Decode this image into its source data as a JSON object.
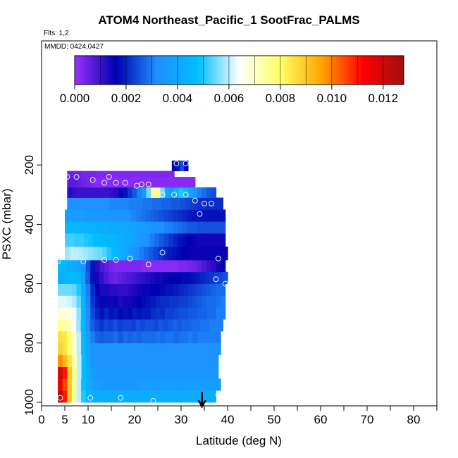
{
  "chart_data": {
    "type": "heatmap",
    "title": "ATOM4 Northeast_Pacific_1 SootFrac_PALMS",
    "flights_label": "Flts: 1,2",
    "dates_label": "MMDD: 0424,0427",
    "xlabel": "Latitude (deg N)",
    "ylabel": "PSXC (mbar)",
    "xlim": [
      0,
      85
    ],
    "ylim": [
      1000,
      0
    ],
    "x_ticks": [
      0,
      5,
      10,
      20,
      30,
      40,
      50,
      60,
      70,
      80
    ],
    "y_ticks": [
      200,
      400,
      600,
      800,
      1000
    ],
    "colorbar": {
      "min": 0.0,
      "max": 0.0128,
      "ticks": [
        "0.000",
        "0.002",
        "0.004",
        "0.006",
        "0.008",
        "0.010",
        "0.012"
      ],
      "colors": [
        "#9b30ff",
        "#0000b0",
        "#1e90ff",
        "#00bfff",
        "#ffffff",
        "#ffff66",
        "#ffa500",
        "#ff0000",
        "#a01010"
      ]
    },
    "layers": [
      {
        "pressure": [
          960,
          1000
        ],
        "x_range": [
          3.5,
          37.5
        ],
        "values": [
          0.0125,
          0.011,
          0.009,
          0.0075,
          0.006,
          0.005,
          0.0045,
          0.0042,
          0.0042,
          0.0042,
          0.0042,
          0.0042,
          0.0042,
          0.0042,
          0.0042,
          0.0042,
          0.0042,
          0.0042,
          0.0042,
          0.0042,
          0.0042,
          0.0042,
          0.0042,
          0.0042,
          0.0042,
          0.0042,
          0.0042,
          0.0042,
          0.0042,
          0.0042,
          0.0042,
          0.0042,
          0.0042,
          0.0042
        ]
      },
      {
        "pressure": [
          920,
          960
        ],
        "x_range": [
          3.5,
          38.5
        ],
        "values": [
          0.0115,
          0.0105,
          0.009,
          0.0075,
          0.006,
          0.0048,
          0.0042,
          0.0038,
          0.0036,
          0.0035,
          0.0035,
          0.0035,
          0.0035,
          0.0035,
          0.0035,
          0.0035,
          0.0035,
          0.0035,
          0.0036,
          0.0036,
          0.0036,
          0.0036,
          0.0036,
          0.0036,
          0.0036,
          0.0036,
          0.0036,
          0.0036,
          0.0036,
          0.0036,
          0.0036,
          0.0036,
          0.0036,
          0.0036,
          0.0036
        ]
      },
      {
        "pressure": [
          880,
          920
        ],
        "x_range": [
          3.5,
          38.0
        ],
        "values": [
          0.012,
          0.011,
          0.009,
          0.0075,
          0.006,
          0.0048,
          0.004,
          0.0036,
          0.0034,
          0.0034,
          0.0034,
          0.0034,
          0.0034,
          0.0034,
          0.0034,
          0.0034,
          0.0034,
          0.0034,
          0.0034,
          0.0034,
          0.0034,
          0.0034,
          0.0034,
          0.0034,
          0.0034,
          0.0034,
          0.0034,
          0.0034,
          0.0034,
          0.0034,
          0.0034,
          0.0034,
          0.0034,
          0.0034
        ]
      },
      {
        "pressure": [
          840,
          880
        ],
        "x_range": [
          3.5,
          38.0
        ],
        "values": [
          0.0098,
          0.0092,
          0.0085,
          0.0072,
          0.006,
          0.0048,
          0.0039,
          0.0035,
          0.0033,
          0.0033,
          0.0033,
          0.0033,
          0.0033,
          0.0033,
          0.0033,
          0.0033,
          0.0033,
          0.0033,
          0.0033,
          0.0033,
          0.0033,
          0.0033,
          0.0033,
          0.0033,
          0.0033,
          0.0033,
          0.0033,
          0.0033,
          0.0033,
          0.0033,
          0.0033,
          0.0033,
          0.0033,
          0.0033
        ]
      },
      {
        "pressure": [
          800,
          840
        ],
        "x_range": [
          3.5,
          38.5
        ],
        "values": [
          0.0088,
          0.0085,
          0.008,
          0.007,
          0.006,
          0.0047,
          0.0038,
          0.0034,
          0.0033,
          0.0033,
          0.0033,
          0.0033,
          0.0033,
          0.0033,
          0.0033,
          0.0033,
          0.0033,
          0.0033,
          0.0033,
          0.0033,
          0.0033,
          0.0033,
          0.0033,
          0.0033,
          0.0033,
          0.0033,
          0.0033,
          0.0033,
          0.0033,
          0.0033,
          0.0033,
          0.0033,
          0.0033,
          0.0033,
          0.0033
        ]
      },
      {
        "pressure": [
          760,
          800
        ],
        "x_range": [
          3.5,
          38.5
        ],
        "values": [
          0.0086,
          0.0084,
          0.0079,
          0.007,
          0.006,
          0.0047,
          0.0036,
          0.003,
          0.0027,
          0.0026,
          0.0027,
          0.0027,
          0.0028,
          0.0026,
          0.0028,
          0.0027,
          0.0028,
          0.0027,
          0.0028,
          0.0028,
          0.0028,
          0.0029,
          0.0028,
          0.0029,
          0.0029,
          0.0028,
          0.0029,
          0.0029,
          0.003,
          0.0029,
          0.003,
          0.003,
          0.003,
          0.003,
          0.003
        ]
      },
      {
        "pressure": [
          720,
          760
        ],
        "x_range": [
          3.5,
          39.0
        ],
        "values": [
          0.0075,
          0.0074,
          0.0072,
          0.0066,
          0.0058,
          0.0046,
          0.0034,
          0.0027,
          0.0024,
          0.0022,
          0.0024,
          0.0023,
          0.0025,
          0.0023,
          0.0024,
          0.0024,
          0.0023,
          0.0025,
          0.0024,
          0.0025,
          0.0025,
          0.0024,
          0.0026,
          0.0025,
          0.0026,
          0.0027,
          0.0026,
          0.0027,
          0.0027,
          0.0028,
          0.0028,
          0.0029,
          0.0029,
          0.003,
          0.003,
          0.003
        ]
      },
      {
        "pressure": [
          680,
          720
        ],
        "x_range": [
          3.5,
          39.5
        ],
        "values": [
          0.0068,
          0.0068,
          0.0067,
          0.0063,
          0.0057,
          0.0045,
          0.0032,
          0.0024,
          0.002,
          0.0018,
          0.002,
          0.0018,
          0.0019,
          0.0017,
          0.0018,
          0.0017,
          0.0019,
          0.0018,
          0.0019,
          0.0019,
          0.0021,
          0.0022,
          0.0021,
          0.0023,
          0.0023,
          0.0024,
          0.0025,
          0.0025,
          0.0026,
          0.0026,
          0.0027,
          0.0027,
          0.0028,
          0.0028,
          0.003,
          0.003
        ]
      },
      {
        "pressure": [
          640,
          680
        ],
        "x_range": [
          3.5,
          39.5
        ],
        "values": [
          0.0062,
          0.0062,
          0.0061,
          0.0059,
          0.0054,
          0.0044,
          0.0031,
          0.0022,
          0.0018,
          0.0015,
          0.0017,
          0.0014,
          0.0015,
          0.0013,
          0.0014,
          0.0014,
          0.0015,
          0.0016,
          0.0017,
          0.0018,
          0.0019,
          0.002,
          0.0021,
          0.0021,
          0.0022,
          0.0022,
          0.0023,
          0.0023,
          0.0024,
          0.0025,
          0.0026,
          0.0027,
          0.0028,
          0.0028,
          0.0029,
          0.003
        ]
      },
      {
        "pressure": [
          600,
          640
        ],
        "x_range": [
          3.5,
          39.5
        ],
        "values": [
          0.0055,
          0.0055,
          0.0055,
          0.0054,
          0.005,
          0.0042,
          0.003,
          0.0021,
          0.0016,
          0.0013,
          0.0013,
          0.0012,
          0.0012,
          0.0011,
          0.0011,
          0.0012,
          0.0013,
          0.0014,
          0.0015,
          0.0015,
          0.0016,
          0.0016,
          0.0017,
          0.0018,
          0.0018,
          0.0019,
          0.002,
          0.0021,
          0.0022,
          0.0023,
          0.0024,
          0.0025,
          0.0026,
          0.0027,
          0.0028,
          0.0028
        ]
      },
      {
        "pressure": [
          560,
          600
        ],
        "x_range": [
          3.5,
          40.0
        ],
        "values": [
          0.0043,
          0.0044,
          0.0046,
          0.0047,
          0.0045,
          0.0038,
          0.0027,
          0.0018,
          0.0014,
          0.0011,
          0.0008,
          0.0006,
          0.0005,
          0.0006,
          0.0007,
          0.0008,
          0.0009,
          0.001,
          0.0011,
          0.0012,
          0.0013,
          0.0014,
          0.0014,
          0.0015,
          0.0016,
          0.0016,
          0.0016,
          0.0017,
          0.0017,
          0.0018,
          0.0019,
          0.002,
          0.0021,
          0.0022,
          0.0023,
          0.0024,
          0.0025
        ]
      },
      {
        "pressure": [
          520,
          560
        ],
        "x_range": [
          3.5,
          39.5
        ],
        "values": [
          0.0047,
          0.0045,
          0.0043,
          0.004,
          0.0038,
          0.0033,
          0.0025,
          0.0018,
          0.0012,
          0.0008,
          0.0006,
          0.0004,
          0.0003,
          0.0003,
          0.0003,
          0.0003,
          0.0003,
          0.0003,
          0.0002,
          0.0002,
          0.0002,
          0.0002,
          0.0002,
          0.0002,
          0.0002,
          0.0002,
          0.0003,
          0.0003,
          0.0004,
          0.0005,
          0.0006,
          0.0008,
          0.001,
          0.0012,
          0.0014,
          0.0016
        ]
      },
      {
        "pressure": [
          475,
          520
        ],
        "x_range": [
          5.0,
          40.0
        ],
        "values": [
          0.0058,
          0.006,
          0.006,
          0.0059,
          0.0058,
          0.0057,
          0.0056,
          0.0055,
          0.0053,
          0.005,
          0.0047,
          0.0044,
          0.0041,
          0.0038,
          0.0035,
          0.0032,
          0.003,
          0.0028,
          0.0026,
          0.0024,
          0.0022,
          0.002,
          0.0019,
          0.0018,
          0.0017,
          0.0016,
          0.0016,
          0.0015,
          0.0015,
          0.0015,
          0.0015,
          0.0015,
          0.0015,
          0.0015,
          0.0015
        ]
      },
      {
        "pressure": [
          430,
          475
        ],
        "x_range": [
          5.0,
          39.5
        ],
        "values": [
          0.0052,
          0.0052,
          0.0051,
          0.0051,
          0.005,
          0.0049,
          0.0048,
          0.0047,
          0.0046,
          0.0045,
          0.0044,
          0.0043,
          0.0042,
          0.004,
          0.0038,
          0.0036,
          0.0034,
          0.0032,
          0.003,
          0.0028,
          0.0026,
          0.0024,
          0.0022,
          0.002,
          0.0018,
          0.0017,
          0.0016,
          0.0015,
          0.0014,
          0.0014,
          0.0014,
          0.0014,
          0.0014,
          0.0014
        ]
      },
      {
        "pressure": [
          390,
          430
        ],
        "x_range": [
          5.0,
          39.5
        ],
        "values": [
          0.0045,
          0.0045,
          0.0045,
          0.0044,
          0.0044,
          0.0043,
          0.0043,
          0.0042,
          0.0042,
          0.0041,
          0.0041,
          0.004,
          0.004,
          0.0039,
          0.0038,
          0.0037,
          0.0036,
          0.0035,
          0.0034,
          0.0033,
          0.0032,
          0.0031,
          0.003,
          0.0029,
          0.0028,
          0.0027,
          0.0026,
          0.0026,
          0.0025,
          0.0025,
          0.0025,
          0.0025,
          0.0025,
          0.0025
        ]
      },
      {
        "pressure": [
          350,
          390
        ],
        "x_range": [
          5.0,
          39.5
        ],
        "values": [
          0.0036,
          0.0036,
          0.0036,
          0.0036,
          0.0035,
          0.0035,
          0.0035,
          0.0034,
          0.0034,
          0.0034,
          0.0033,
          0.0033,
          0.0033,
          0.0032,
          0.0031,
          0.003,
          0.0029,
          0.0028,
          0.0027,
          0.0026,
          0.0025,
          0.0024,
          0.0023,
          0.0022,
          0.0021,
          0.002,
          0.0019,
          0.0018,
          0.0018,
          0.0018,
          0.0018,
          0.0018,
          0.0018,
          0.0018
        ]
      },
      {
        "pressure": [
          310,
          350
        ],
        "x_range": [
          5.5,
          39.0
        ],
        "values": [
          0.0032,
          0.0032,
          0.0032,
          0.0032,
          0.0032,
          0.0032,
          0.0032,
          0.0032,
          0.0032,
          0.0031,
          0.0031,
          0.0031,
          0.0031,
          0.003,
          0.003,
          0.003,
          0.0029,
          0.0029,
          0.0028,
          0.0028,
          0.0027,
          0.0027,
          0.0026,
          0.0026,
          0.0025,
          0.0024,
          0.0023,
          0.0022,
          0.0021,
          0.0021,
          0.0021,
          0.0021,
          0.0021
        ]
      },
      {
        "pressure": [
          275,
          310
        ],
        "x_range": [
          5.5,
          37.5
        ],
        "values": [
          0.0012,
          0.0011,
          0.001,
          0.001,
          0.001,
          0.001,
          0.001,
          0.001,
          0.001,
          0.0011,
          0.0012,
          0.0015,
          0.0018,
          0.0022,
          0.0026,
          0.003,
          0.0035,
          0.0055,
          0.0075,
          0.0075,
          0.0055,
          0.004,
          0.0035,
          0.0045,
          0.005,
          0.0045,
          0.004,
          0.0035,
          0.003,
          0.0028,
          0.0026,
          0.0025
        ]
      },
      {
        "pressure": [
          240,
          275
        ],
        "x_range": [
          5.5,
          33.0
        ],
        "values": [
          0.0007,
          0.0007,
          0.0006,
          0.0005,
          0.0004,
          0.0003,
          0.0002,
          0.0002,
          0.0002,
          0.0002,
          0.0002,
          0.0002,
          0.0002,
          0.0002,
          0.0002,
          0.0002,
          0.0002,
          0.0002,
          0.0002,
          0.0002,
          0.0002,
          0.0002,
          0.0002,
          0.0002,
          0.0002,
          0.0002,
          0.0002,
          0.0002
        ]
      },
      {
        "pressure": [
          220,
          240
        ],
        "x_range": [
          5.5,
          28.5
        ],
        "values": [
          0.0005,
          0.0005,
          0.0005,
          0.0004,
          0.0004,
          0.0004,
          0.0003,
          0.0003,
          0.0003,
          0.0003,
          0.0003,
          0.0003,
          0.0003,
          0.0003,
          0.0003,
          0.0003,
          0.0003,
          0.0003,
          0.0003,
          0.0003,
          0.0003,
          0.0003,
          0.0003
        ]
      },
      {
        "pressure": [
          185,
          220
        ],
        "x_range": [
          28.0,
          31.5
        ],
        "values": [
          0.0015,
          0.0018,
          0.0025,
          0.0016
        ]
      }
    ],
    "points": [
      [
        4,
        985
      ],
      [
        10.5,
        985
      ],
      [
        17,
        985
      ],
      [
        24,
        995
      ],
      [
        38,
        975
      ],
      [
        5.5,
        240
      ],
      [
        7.5,
        240
      ],
      [
        11,
        250
      ],
      [
        13.5,
        260
      ],
      [
        14.5,
        240
      ],
      [
        16,
        260
      ],
      [
        18,
        260
      ],
      [
        20.5,
        270
      ],
      [
        21.5,
        265
      ],
      [
        23,
        265
      ],
      [
        26,
        300
      ],
      [
        28.5,
        300
      ],
      [
        31,
        300
      ],
      [
        33,
        320
      ],
      [
        35,
        330
      ],
      [
        36.5,
        330
      ],
      [
        34,
        365
      ],
      [
        29,
        195
      ],
      [
        31,
        195
      ],
      [
        3.5,
        525
      ],
      [
        9,
        525
      ],
      [
        13.5,
        520
      ],
      [
        16,
        520
      ],
      [
        19,
        515
      ],
      [
        23,
        535
      ],
      [
        26,
        495
      ],
      [
        38,
        515
      ],
      [
        37.5,
        585
      ],
      [
        39.5,
        600
      ]
    ],
    "arrow_lat": 34.5
  }
}
